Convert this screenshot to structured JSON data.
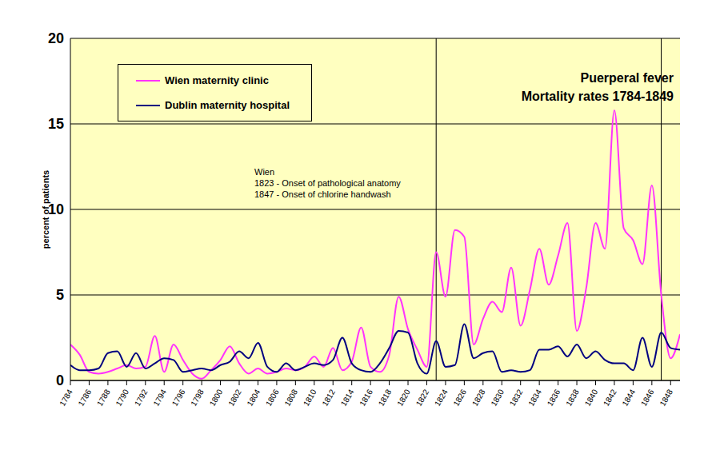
{
  "chart_data": {
    "type": "line",
    "title": "Puerperal fever",
    "subtitle": "Mortality rates 1784-1849",
    "y_label": "percent of patients",
    "x": [
      1784,
      1785,
      1786,
      1787,
      1788,
      1789,
      1790,
      1791,
      1792,
      1793,
      1794,
      1795,
      1796,
      1797,
      1798,
      1799,
      1800,
      1801,
      1802,
      1803,
      1804,
      1805,
      1806,
      1807,
      1808,
      1809,
      1810,
      1811,
      1812,
      1813,
      1814,
      1815,
      1816,
      1817,
      1818,
      1819,
      1820,
      1821,
      1822,
      1823,
      1824,
      1825,
      1826,
      1827,
      1828,
      1829,
      1830,
      1831,
      1832,
      1833,
      1834,
      1835,
      1836,
      1837,
      1838,
      1839,
      1840,
      1841,
      1842,
      1843,
      1844,
      1845,
      1846,
      1847,
      1848,
      1849
    ],
    "series": [
      {
        "name": "Wien maternity clinic",
        "color": "#ff33ff",
        "values": [
          2.1,
          1.5,
          0.5,
          0.4,
          0.5,
          0.7,
          0.9,
          0.7,
          0.8,
          2.6,
          0.5,
          2.1,
          1.2,
          0.4,
          0.1,
          0.6,
          1.2,
          2.0,
          1.0,
          0.4,
          0.7,
          0.4,
          0.5,
          0.7,
          0.6,
          0.8,
          1.4,
          0.8,
          1.9,
          0.6,
          1.1,
          3.1,
          0.8,
          0.5,
          1.5,
          4.9,
          3.0,
          1.8,
          0.8,
          7.5,
          4.9,
          8.8,
          8.4,
          2.1,
          3.6,
          4.6,
          4.0,
          6.6,
          3.2,
          5.3,
          7.7,
          5.6,
          7.3,
          9.2,
          2.9,
          5.4,
          9.2,
          7.7,
          15.8,
          8.9,
          8.2,
          6.8,
          11.4,
          5.0,
          1.3,
          2.7
        ]
      },
      {
        "name": "Dublin maternity hospital",
        "color": "#000080",
        "values": [
          0.9,
          0.6,
          0.6,
          0.7,
          1.6,
          1.7,
          0.8,
          1.6,
          0.7,
          1.0,
          1.3,
          1.2,
          0.5,
          0.6,
          0.7,
          0.6,
          0.9,
          1.1,
          1.7,
          1.3,
          2.2,
          0.8,
          0.5,
          1.0,
          0.6,
          0.8,
          1.0,
          0.9,
          1.2,
          2.5,
          1.0,
          0.6,
          0.5,
          1.0,
          1.9,
          2.9,
          2.8,
          1.0,
          0.4,
          2.3,
          0.8,
          0.9,
          3.3,
          1.3,
          1.6,
          1.7,
          0.5,
          0.6,
          0.5,
          0.6,
          1.8,
          1.8,
          2.0,
          1.4,
          2.1,
          1.3,
          1.7,
          1.2,
          1.0,
          1.0,
          0.6,
          2.5,
          0.8,
          2.8,
          1.9,
          1.8
        ]
      }
    ],
    "xlim": [
      1784,
      1849
    ],
    "ylim": [
      0,
      20
    ],
    "xticks": [
      1784,
      1786,
      1788,
      1790,
      1792,
      1794,
      1796,
      1798,
      1800,
      1802,
      1804,
      1806,
      1808,
      1810,
      1812,
      1814,
      1816,
      1818,
      1820,
      1822,
      1824,
      1826,
      1828,
      1830,
      1832,
      1834,
      1836,
      1838,
      1840,
      1842,
      1844,
      1846,
      1848
    ],
    "yticks": [
      0,
      5,
      10,
      15,
      20
    ],
    "grid": true,
    "legend": "top-left",
    "annotation_title": "Wien",
    "annotations": [
      {
        "x": 1823,
        "text": "1823 - Onset of pathological anatomy"
      },
      {
        "x": 1847,
        "text": "1847 - Onset of chlorine handwash"
      }
    ]
  }
}
